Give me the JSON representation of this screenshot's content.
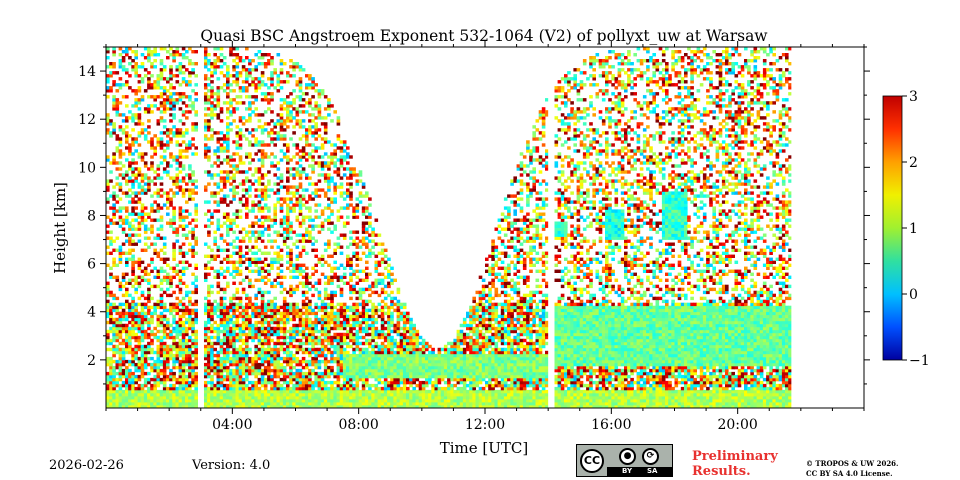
{
  "chart_data": {
    "type": "heatmap",
    "title": "Quasi BSC Angstroem Exponent 532-1064 (V2) of pollyxt_uw at Warsaw",
    "xlabel": "Time [UTC]",
    "ylabel": "Height [km]",
    "xlim_hours": [
      0,
      24
    ],
    "ylim": [
      0,
      15
    ],
    "x_ticks": [
      4,
      8,
      12,
      16,
      20
    ],
    "x_tick_labels": [
      "04:00",
      "08:00",
      "12:00",
      "16:00",
      "20:00"
    ],
    "y_ticks": [
      2,
      4,
      6,
      8,
      10,
      12,
      14
    ],
    "y_tick_labels": [
      "2",
      "4",
      "6",
      "8",
      "10",
      "12",
      "14"
    ],
    "colorbar": {
      "min": -1,
      "max": 3,
      "ticks": [
        -1,
        0,
        1,
        2,
        3
      ],
      "tick_labels": [
        "−1",
        "0",
        "1",
        "2",
        "3"
      ],
      "colormap": "jet"
    },
    "data_gaps_hours": [
      [
        2.95,
        3.1
      ],
      [
        14.0,
        14.15
      ],
      [
        21.7,
        24
      ]
    ],
    "layers": [
      {
        "name": "surface layer",
        "t_start": 0,
        "t_end": 21.7,
        "h_bottom": 0,
        "h_top": 0.8,
        "value": 1.2
      },
      {
        "name": "boundary layer aerosol",
        "t_start": 7.5,
        "t_end": 14.0,
        "h_bottom": 1.3,
        "h_top": 2.3,
        "value": 1.0
      },
      {
        "name": "upper aerosol layer",
        "t_start": 14.15,
        "t_end": 21.7,
        "h_bottom": 1.8,
        "h_top": 4.3,
        "value": 0.9
      },
      {
        "name": "cloud patch 1",
        "t_start": 14.2,
        "t_end": 14.6,
        "h_bottom": 7.1,
        "h_top": 7.8,
        "value": 0.6
      },
      {
        "name": "cloud patch 2",
        "t_start": 15.8,
        "t_end": 16.4,
        "h_bottom": 7.0,
        "h_top": 8.2,
        "value": 0.6
      },
      {
        "name": "cloud patch 3",
        "t_start": 17.6,
        "t_end": 18.4,
        "h_bottom": 7.0,
        "h_top": 9.0,
        "value": 0.7
      }
    ]
  },
  "footer": {
    "date": "2026-02-26",
    "version": "Version: 4.0",
    "cc_label": "CC",
    "cc_by": "BY",
    "cc_sa": "SA",
    "preliminary_line1": "Preliminary",
    "preliminary_line2": "Results.",
    "license_line1": "© TROPOS & UW 2026.",
    "license_line2": "CC BY SA 4.0 License."
  }
}
